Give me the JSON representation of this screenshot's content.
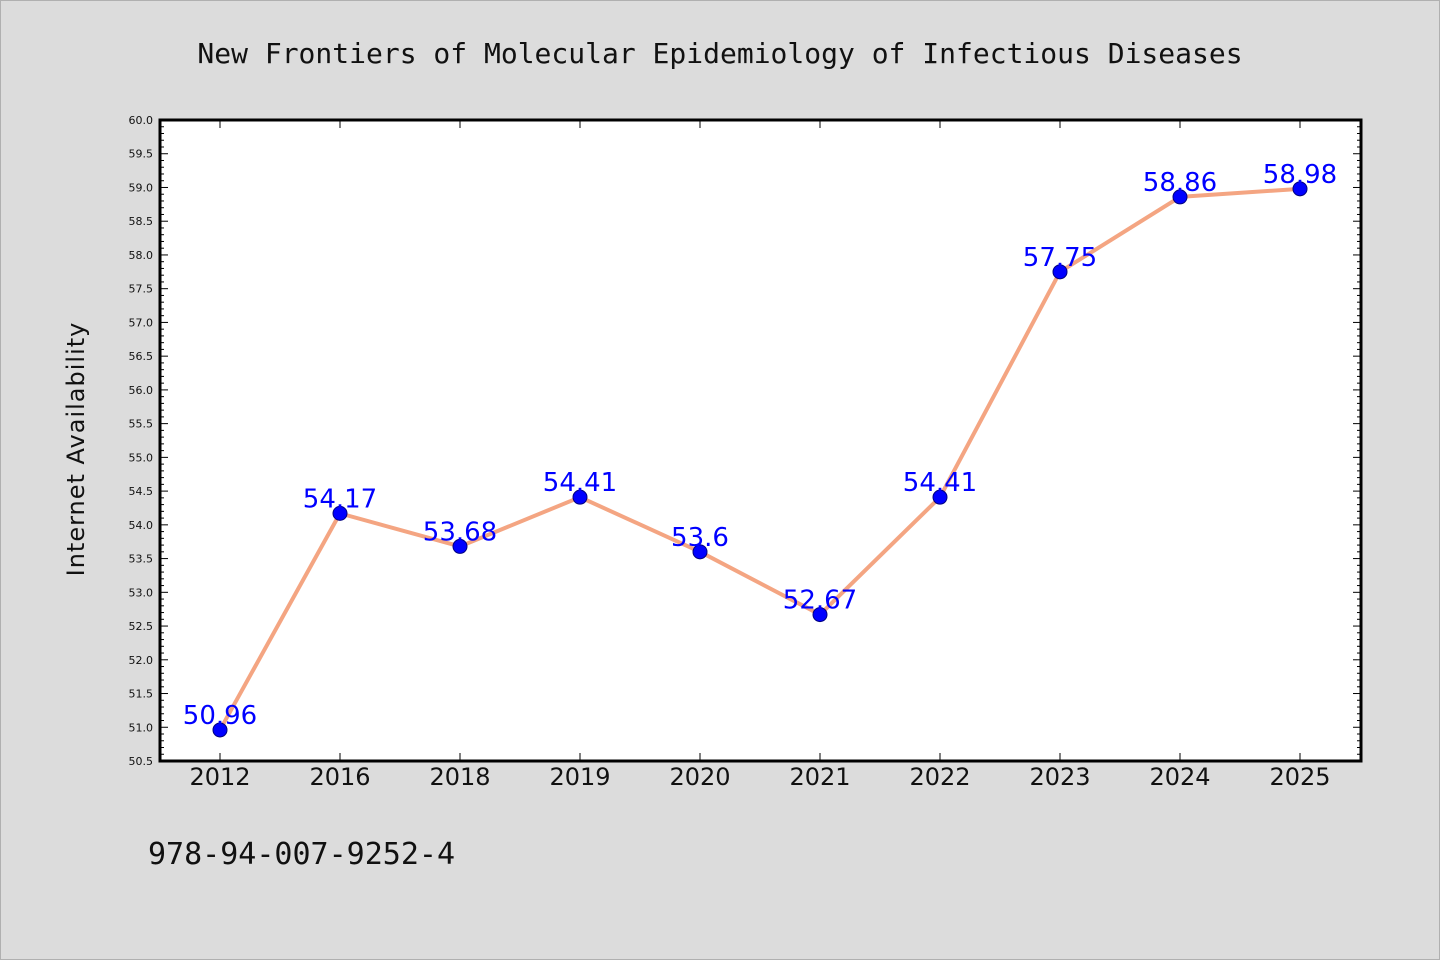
{
  "chart_data": {
    "type": "line",
    "title": "New Frontiers of Molecular Epidemiology of Infectious Diseases",
    "xlabel": "",
    "ylabel": "Internet Availability",
    "categories": [
      "2012",
      "2016",
      "2018",
      "2019",
      "2020",
      "2021",
      "2022",
      "2023",
      "2024",
      "2025"
    ],
    "series": [
      {
        "values": [
          50.96,
          54.17,
          53.68,
          54.41,
          53.6,
          52.67,
          54.41,
          57.75,
          58.86,
          58.98
        ],
        "labels": [
          "50.96",
          "54.17",
          "53.68",
          "54.41",
          "53.6",
          "52.67",
          "54.41",
          "57.75",
          "58.86",
          "58.98"
        ]
      }
    ],
    "ylim": [
      50.5,
      60.0
    ],
    "yticks": [
      "50.5",
      "51.0",
      "51.5",
      "52.0",
      "52.5",
      "53.0",
      "53.5",
      "54.0",
      "54.5",
      "55.0",
      "55.5",
      "56.0",
      "56.5",
      "57.0",
      "57.5",
      "58.0",
      "58.5",
      "59.0",
      "59.5",
      "60.0"
    ],
    "grid": false,
    "colors": {
      "line": "#f4a582",
      "marker": "#0000ff",
      "marker_edge": "#000080",
      "data_label": "#0000ff",
      "background": "#dcdcdc",
      "plot_background": "#ffffff"
    }
  },
  "caption": "978-94-007-9252-4"
}
